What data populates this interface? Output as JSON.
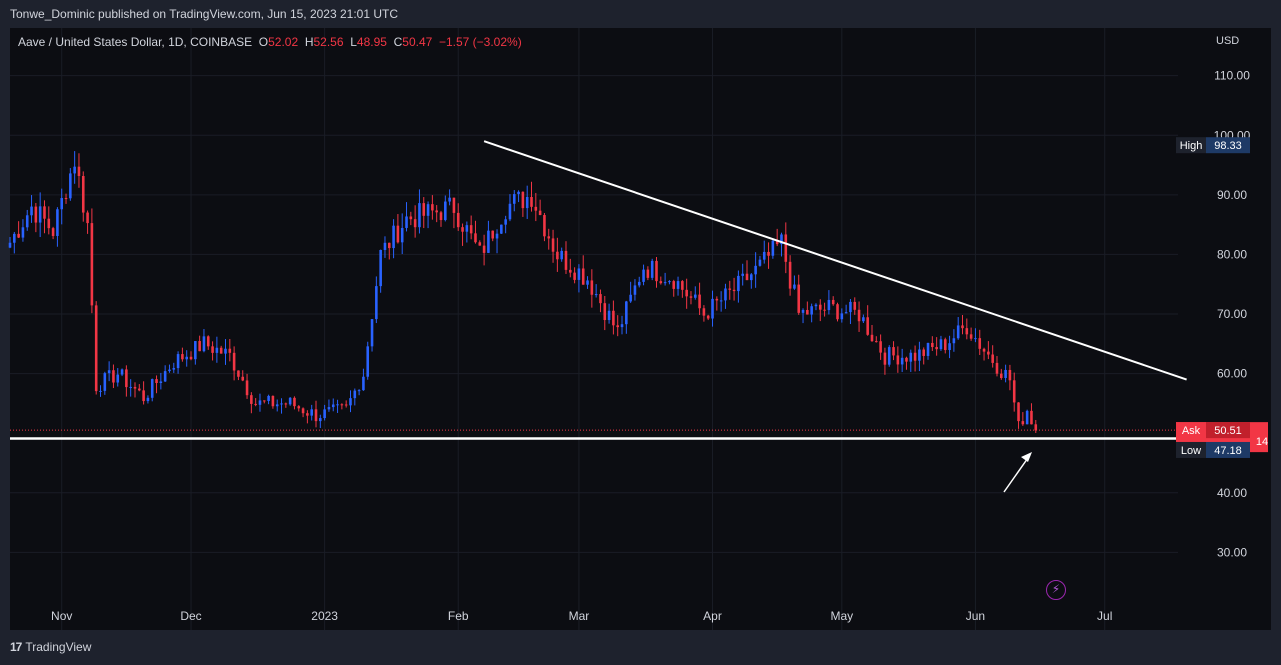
{
  "header": {
    "published_text": "Tonwe_Dominic published on TradingView.com, Jun 15, 2023 21:01 UTC"
  },
  "legend": {
    "symbol": "Aave / United States Dollar, 1D, COINBASE",
    "o_label": "O",
    "o_value": "52.02",
    "h_label": "H",
    "h_value": "52.56",
    "l_label": "L",
    "l_value": "48.95",
    "c_label": "C",
    "c_value": "50.47",
    "change": "−1.57 (−3.02%)"
  },
  "price_axis": {
    "currency": "USD",
    "ticks": [
      "110.00",
      "100.00",
      "90.00",
      "80.00",
      "70.00",
      "60.00",
      "40.00",
      "30.00"
    ]
  },
  "time_axis": {
    "ticks": [
      "Nov",
      "Dec",
      "2023",
      "Feb",
      "Mar",
      "Apr",
      "May",
      "Jun",
      "Jul"
    ]
  },
  "labels": {
    "high_label": "High",
    "high_value": "98.33",
    "ask_label": "Ask",
    "ask_value": "50.51",
    "low_label": "Low",
    "low_value": "47.18",
    "last_partial": "14"
  },
  "footer": {
    "brand": "TradingView",
    "logo": "17"
  },
  "colors": {
    "up": "#2962ff",
    "down": "#f23645",
    "background": "#0c0d12",
    "trendline": "#ffffff"
  },
  "chart_data": {
    "type": "candlestick",
    "symbol": "AAVE/USD",
    "interval": "1D",
    "y_range": [
      22,
      118
    ],
    "x_range": [
      "2022-10-20",
      "2023-07-18"
    ],
    "closes": [
      {
        "date": "2022-10-20",
        "close": 82
      },
      {
        "date": "2022-10-25",
        "close": 88
      },
      {
        "date": "2022-10-30",
        "close": 84
      },
      {
        "date": "2022-11-04",
        "close": 96
      },
      {
        "date": "2022-11-07",
        "close": 85
      },
      {
        "date": "2022-11-09",
        "close": 58
      },
      {
        "date": "2022-11-14",
        "close": 60
      },
      {
        "date": "2022-11-20",
        "close": 56
      },
      {
        "date": "2022-11-27",
        "close": 62
      },
      {
        "date": "2022-12-04",
        "close": 65
      },
      {
        "date": "2022-12-10",
        "close": 63
      },
      {
        "date": "2022-12-16",
        "close": 55
      },
      {
        "date": "2022-12-24",
        "close": 55
      },
      {
        "date": "2022-12-30",
        "close": 53
      },
      {
        "date": "2023-01-06",
        "close": 54
      },
      {
        "date": "2023-01-10",
        "close": 60
      },
      {
        "date": "2023-01-14",
        "close": 80
      },
      {
        "date": "2023-01-20",
        "close": 86
      },
      {
        "date": "2023-01-26",
        "close": 87
      },
      {
        "date": "2023-01-31",
        "close": 88
      },
      {
        "date": "2023-02-06",
        "close": 80
      },
      {
        "date": "2023-02-12",
        "close": 88
      },
      {
        "date": "2023-02-18",
        "close": 90
      },
      {
        "date": "2023-02-24",
        "close": 80
      },
      {
        "date": "2023-03-03",
        "close": 76
      },
      {
        "date": "2023-03-10",
        "close": 67
      },
      {
        "date": "2023-03-16",
        "close": 78
      },
      {
        "date": "2023-03-23",
        "close": 76
      },
      {
        "date": "2023-03-30",
        "close": 70
      },
      {
        "date": "2023-04-06",
        "close": 74
      },
      {
        "date": "2023-04-12",
        "close": 78
      },
      {
        "date": "2023-04-17",
        "close": 82
      },
      {
        "date": "2023-04-21",
        "close": 70
      },
      {
        "date": "2023-04-28",
        "close": 71
      },
      {
        "date": "2023-05-05",
        "close": 70
      },
      {
        "date": "2023-05-11",
        "close": 63
      },
      {
        "date": "2023-05-18",
        "close": 63
      },
      {
        "date": "2023-05-25",
        "close": 65
      },
      {
        "date": "2023-05-30",
        "close": 68
      },
      {
        "date": "2023-06-03",
        "close": 64
      },
      {
        "date": "2023-06-09",
        "close": 59
      },
      {
        "date": "2023-06-11",
        "close": 51
      },
      {
        "date": "2023-06-13",
        "close": 54
      },
      {
        "date": "2023-06-15",
        "close": 50.47
      }
    ],
    "trendline": {
      "from": {
        "date": "2023-02-07",
        "price": 99
      },
      "to": {
        "date": "2023-07-20",
        "price": 59
      }
    },
    "support_line": {
      "price": 49.1
    },
    "high": 98.33,
    "low": 47.18,
    "ask": 50.51
  }
}
